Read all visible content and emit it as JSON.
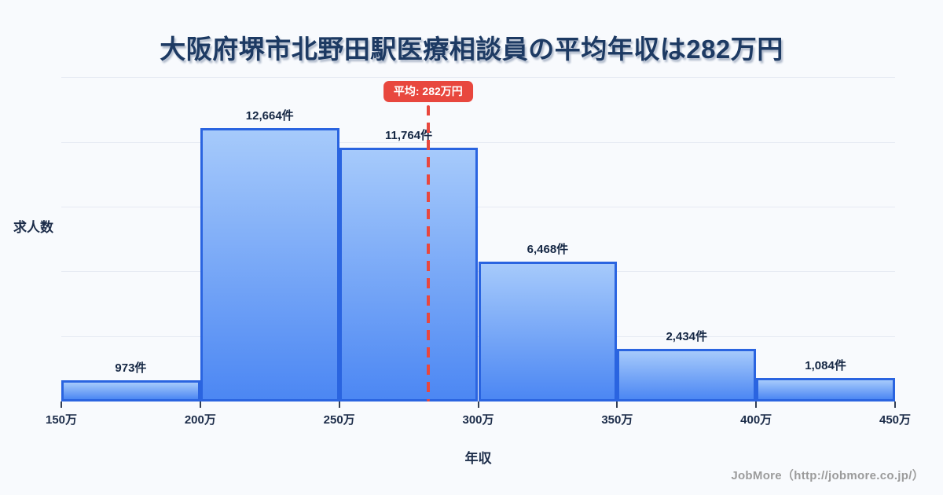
{
  "title": "大阪府堺市北野田駅医療相談員の平均年収は282万円",
  "footer": {
    "credit": "JobMore（http://jobmore.co.jp/）"
  },
  "chart_data": {
    "type": "bar",
    "subtype": "histogram",
    "title": "大阪府堺市北野田駅医療相談員の平均年収は282万円",
    "xlabel": "年収",
    "ylabel": "求人数",
    "bin_edge_labels": [
      "150万",
      "200万",
      "250万",
      "300万",
      "350万",
      "400万",
      "450万"
    ],
    "bin_edge_values": [
      150,
      200,
      250,
      300,
      350,
      400,
      450
    ],
    "values": [
      973,
      12664,
      11764,
      6468,
      2434,
      1084
    ],
    "bar_labels": [
      "973件",
      "12,664件",
      "11,764件",
      "6,468件",
      "2,434件",
      "1,084件"
    ],
    "average_value": 282,
    "average_label": "平均: 282万円",
    "ylim": [
      0,
      15300
    ],
    "gridline_values": [
      3000,
      6000,
      9000,
      12000,
      15000
    ],
    "grid": "horizontal-only",
    "legend": "none"
  },
  "colors": {
    "background": "#f8fafd",
    "title": "#1d3a63",
    "text_dark": "#1c2c49",
    "bar_fill_top": "#a6cafb",
    "bar_fill_bottom": "#4c87f3",
    "bar_border": "#2a64e0",
    "gridline": "#e6eaf3",
    "average_red": "#e8473e",
    "badge_text": "#ffffff",
    "footer_gray": "#9b9b9b",
    "tick": "#333f55"
  }
}
